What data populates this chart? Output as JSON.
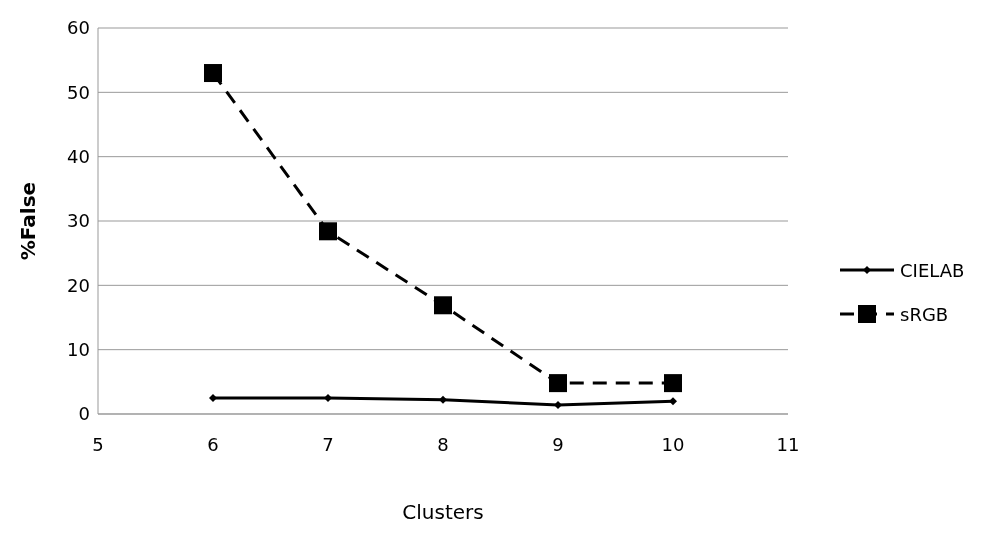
{
  "chart_data": {
    "type": "line",
    "xlabel": "Clusters",
    "ylabel": "%False",
    "x": [
      6,
      7,
      8,
      9,
      10
    ],
    "series": [
      {
        "name": "CIELAB",
        "color": "#000000",
        "marker": "diamond",
        "line_style": "solid",
        "values": [
          2.5,
          2.5,
          2.2,
          1.4,
          2.0
        ]
      },
      {
        "name": "sRGB",
        "color": "#000000",
        "marker": "square",
        "line_style": "dashed",
        "values": [
          53,
          28.4,
          16.9,
          4.8,
          4.8
        ]
      }
    ],
    "xlim": [
      5,
      11
    ],
    "xticks": [
      5,
      6,
      7,
      8,
      9,
      10,
      11
    ],
    "ylim": [
      0,
      60
    ],
    "yticks": [
      0,
      10,
      20,
      30,
      40,
      50,
      60
    ],
    "grid": "y",
    "legend": "right"
  }
}
